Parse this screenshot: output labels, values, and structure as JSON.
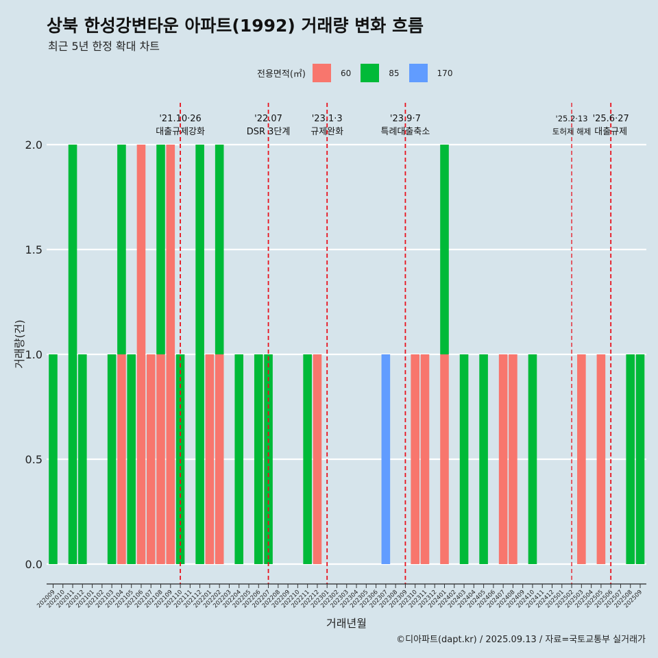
{
  "title": "상북 한성강변타운 아파트(1992) 거래량 변화 흐름",
  "subtitle": "최근 5년 한정 확대 차트",
  "caption": "©디아파트(dapt.kr) / 2025.09.13 / 자료=국토교통부 실거래가",
  "legend": {
    "title": "전용면적(㎡)",
    "items": [
      {
        "label": "60",
        "color": "#f8766d"
      },
      {
        "label": "85",
        "color": "#00ba38"
      },
      {
        "label": "170",
        "color": "#619cff"
      }
    ]
  },
  "chart_data": {
    "type": "bar",
    "xlabel": "거래년월",
    "ylabel": "거래량(건)",
    "ylim": [
      0,
      2
    ],
    "yticks": [
      "0.0",
      "0.5",
      "1.0",
      "1.5",
      "2.0"
    ],
    "categories": [
      "202009",
      "202010",
      "202011",
      "202012",
      "202101",
      "202102",
      "202103",
      "202104",
      "202105",
      "202106",
      "202107",
      "202108",
      "202109",
      "202110",
      "202111",
      "202112",
      "202201",
      "202202",
      "202203",
      "202204",
      "202205",
      "202206",
      "202207",
      "202208",
      "202209",
      "202210",
      "202211",
      "202212",
      "202301",
      "202302",
      "202303",
      "202304",
      "202305",
      "202306",
      "202307",
      "202308",
      "202309",
      "202310",
      "202311",
      "202312",
      "202401",
      "202402",
      "202403",
      "202404",
      "202405",
      "202406",
      "202407",
      "202408",
      "202409",
      "202410",
      "202411",
      "202412",
      "202501",
      "202502",
      "202503",
      "202504",
      "202505",
      "202506",
      "202507",
      "202508",
      "202509"
    ],
    "bars": [
      {
        "month": "202009",
        "segments": [
          {
            "area": "85",
            "count": 1
          }
        ]
      },
      {
        "month": "202011",
        "segments": [
          {
            "area": "85",
            "count": 2
          }
        ]
      },
      {
        "month": "202012",
        "segments": [
          {
            "area": "85",
            "count": 1
          }
        ]
      },
      {
        "month": "202103",
        "segments": [
          {
            "area": "85",
            "count": 1
          }
        ]
      },
      {
        "month": "202104",
        "segments": [
          {
            "area": "60",
            "count": 1
          },
          {
            "area": "85",
            "count": 1
          }
        ]
      },
      {
        "month": "202105",
        "segments": [
          {
            "area": "85",
            "count": 1
          }
        ]
      },
      {
        "month": "202106",
        "segments": [
          {
            "area": "60",
            "count": 2
          }
        ]
      },
      {
        "month": "202107",
        "segments": [
          {
            "area": "60",
            "count": 1
          }
        ]
      },
      {
        "month": "202108",
        "segments": [
          {
            "area": "60",
            "count": 1
          },
          {
            "area": "85",
            "count": 1
          }
        ]
      },
      {
        "month": "202109",
        "segments": [
          {
            "area": "60",
            "count": 2
          }
        ]
      },
      {
        "month": "202110",
        "segments": [
          {
            "area": "85",
            "count": 1
          }
        ]
      },
      {
        "month": "202112",
        "segments": [
          {
            "area": "85",
            "count": 2
          }
        ]
      },
      {
        "month": "202201",
        "segments": [
          {
            "area": "60",
            "count": 1
          }
        ]
      },
      {
        "month": "202202",
        "segments": [
          {
            "area": "60",
            "count": 1
          },
          {
            "area": "85",
            "count": 1
          }
        ]
      },
      {
        "month": "202204",
        "segments": [
          {
            "area": "85",
            "count": 1
          }
        ]
      },
      {
        "month": "202206",
        "segments": [
          {
            "area": "85",
            "count": 1
          }
        ]
      },
      {
        "month": "202207",
        "segments": [
          {
            "area": "85",
            "count": 1
          }
        ]
      },
      {
        "month": "202211",
        "segments": [
          {
            "area": "85",
            "count": 1
          }
        ]
      },
      {
        "month": "202212",
        "segments": [
          {
            "area": "60",
            "count": 1
          }
        ]
      },
      {
        "month": "202307",
        "segments": [
          {
            "area": "170",
            "count": 1
          }
        ]
      },
      {
        "month": "202310",
        "segments": [
          {
            "area": "60",
            "count": 1
          }
        ]
      },
      {
        "month": "202311",
        "segments": [
          {
            "area": "60",
            "count": 1
          }
        ]
      },
      {
        "month": "202401",
        "segments": [
          {
            "area": "60",
            "count": 1
          },
          {
            "area": "85",
            "count": 1
          }
        ]
      },
      {
        "month": "202403",
        "segments": [
          {
            "area": "85",
            "count": 1
          }
        ]
      },
      {
        "month": "202405",
        "segments": [
          {
            "area": "85",
            "count": 1
          }
        ]
      },
      {
        "month": "202407",
        "segments": [
          {
            "area": "60",
            "count": 1
          }
        ]
      },
      {
        "month": "202408",
        "segments": [
          {
            "area": "60",
            "count": 1
          }
        ]
      },
      {
        "month": "202410",
        "segments": [
          {
            "area": "85",
            "count": 1
          }
        ]
      },
      {
        "month": "202503",
        "segments": [
          {
            "area": "60",
            "count": 1
          }
        ]
      },
      {
        "month": "202505",
        "segments": [
          {
            "area": "60",
            "count": 1
          }
        ]
      },
      {
        "month": "202508",
        "segments": [
          {
            "area": "85",
            "count": 1
          }
        ]
      },
      {
        "month": "202509",
        "segments": [
          {
            "area": "85",
            "count": 1
          }
        ]
      }
    ],
    "events": [
      {
        "month": "202110",
        "pos": 0.5,
        "date": "'21.10·26",
        "label": "대출규제강화",
        "small": false
      },
      {
        "month": "202207",
        "pos": 0.5,
        "date": "'22.07",
        "label": "DSR 3단계",
        "small": false
      },
      {
        "month": "202301",
        "pos": 0.5,
        "date": "'23.1·3",
        "label": "규제완화",
        "small": false
      },
      {
        "month": "202309",
        "pos": 0.5,
        "date": "'23.9·7",
        "label": "특례대출축소",
        "small": false
      },
      {
        "month": "202502",
        "pos": 0.5,
        "date": "'25.2·13",
        "label": "토허제 해제",
        "small": true
      },
      {
        "month": "202506",
        "pos": 0.5,
        "date": "'25.6·27",
        "label": "대출규제",
        "small": false
      }
    ]
  }
}
